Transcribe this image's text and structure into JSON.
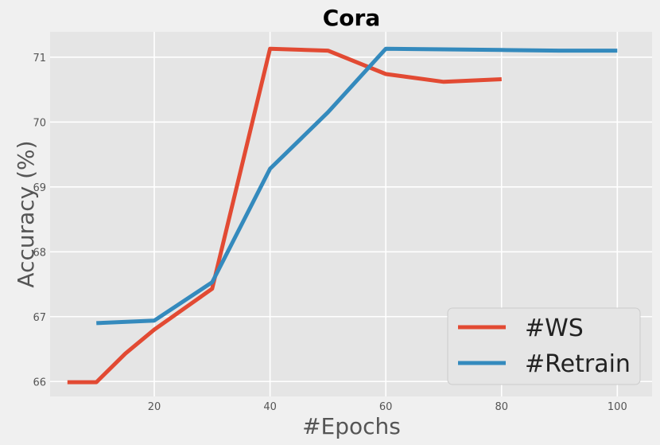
{
  "chart_data": {
    "type": "line",
    "title": "Cora",
    "xlabel": "#Epochs",
    "ylabel": "Accuracy (%)",
    "xlim": [
      2,
      106
    ],
    "ylim": [
      65.77,
      71.39
    ],
    "x_ticks": [
      20,
      40,
      60,
      80,
      100
    ],
    "y_ticks": [
      66,
      67,
      68,
      69,
      70,
      71
    ],
    "grid": true,
    "legend_position": "bottom-right",
    "series": [
      {
        "name": "#WS",
        "color": "#e24a33",
        "x": [
          5,
          10,
          15,
          20,
          30,
          40,
          50,
          60,
          70,
          80
        ],
        "y": [
          65.99,
          65.99,
          66.43,
          66.8,
          67.43,
          71.13,
          71.1,
          70.74,
          70.62,
          70.66
        ]
      },
      {
        "name": "#Retrain",
        "color": "#348abd",
        "x": [
          10,
          20,
          30,
          40,
          50,
          60,
          70,
          80,
          90,
          100
        ],
        "y": [
          66.9,
          66.94,
          67.53,
          69.28,
          70.15,
          71.13,
          71.12,
          71.11,
          71.1,
          71.1
        ]
      }
    ]
  }
}
